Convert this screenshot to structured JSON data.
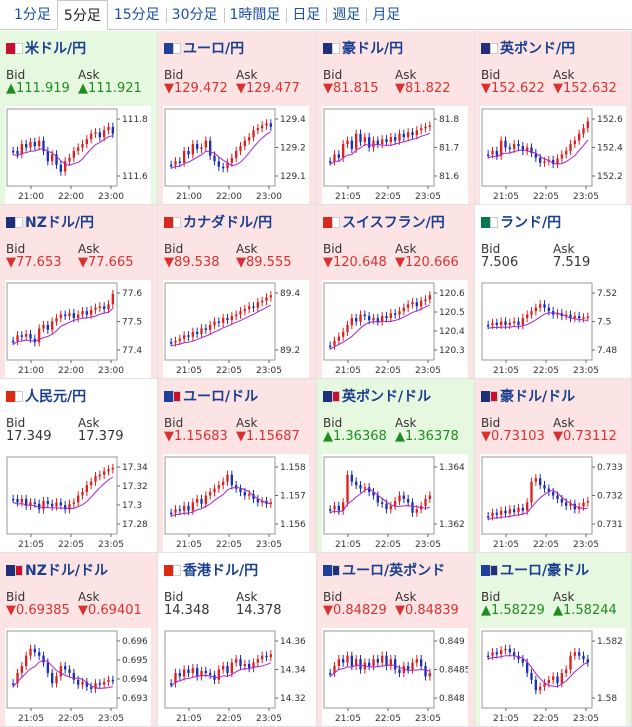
{
  "tabs": [
    {
      "label": "1分足",
      "active": false
    },
    {
      "label": "5分足",
      "active": true
    },
    {
      "label": "15分足",
      "active": false
    },
    {
      "label": "30分足",
      "active": false
    },
    {
      "label": "1時間足",
      "active": false
    },
    {
      "label": "日足",
      "active": false
    },
    {
      "label": "週足",
      "active": false
    },
    {
      "label": "月足",
      "active": false
    }
  ],
  "bid_label": "Bid",
  "ask_label": "Ask",
  "colors": {
    "up_bg": "#e6f8e0",
    "down_bg": "#fde4e4",
    "up_text": "#1e8c1e",
    "down_text": "#d93030",
    "candle_up": "#e02020",
    "candle_down": "#1a2fb8",
    "ma_line": "#aa22cc"
  },
  "cards": [
    {
      "name": "米ドル/円",
      "trend": "up",
      "flag": [
        "#c8102e",
        "#ffffff"
      ],
      "bid": "111.919",
      "ask": "111.921",
      "x_ticks": [
        "21:00",
        "22:00",
        "23:00"
      ],
      "y_ticks": [
        "111.8",
        "111.6"
      ]
    },
    {
      "name": "ユーロ/円",
      "trend": "down",
      "flag": [
        "#1f3f9a",
        "#ffffff"
      ],
      "bid": "129.472",
      "ask": "129.477",
      "x_ticks": [
        "21:00",
        "22:00",
        "23:00"
      ],
      "y_ticks": [
        "129.4",
        "129.2",
        "129.1"
      ]
    },
    {
      "name": "豪ドル/円",
      "trend": "down",
      "flag": [
        "#1f2f7a",
        "#ffffff"
      ],
      "bid": "81.815",
      "ask": "81.822",
      "x_ticks": [
        "21:05",
        "22:05",
        "23:05"
      ],
      "y_ticks": [
        "81.8",
        "81.7",
        "81.6"
      ]
    },
    {
      "name": "英ポンド/円",
      "trend": "down",
      "flag": [
        "#1f2f7a",
        "#ffffff"
      ],
      "bid": "152.622",
      "ask": "152.632",
      "x_ticks": [
        "21:05",
        "22:05",
        "23:05"
      ],
      "y_ticks": [
        "152.6",
        "152.4",
        "152.2"
      ]
    },
    {
      "name": "NZドル/円",
      "trend": "down",
      "flag": [
        "#1f2f7a",
        "#ffffff"
      ],
      "bid": "77.653",
      "ask": "77.665",
      "x_ticks": [
        "21:00",
        "22:00",
        "23:00"
      ],
      "y_ticks": [
        "77.6",
        "77.5",
        "77.4"
      ]
    },
    {
      "name": "カナダドル/円",
      "trend": "down",
      "flag": [
        "#d52b1e",
        "#ffffff"
      ],
      "bid": "89.538",
      "ask": "89.555",
      "x_ticks": [
        "21:05",
        "22:05",
        "23:05"
      ],
      "y_ticks": [
        "89.4",
        "89.2"
      ]
    },
    {
      "name": "スイスフラン/円",
      "trend": "down",
      "flag": [
        "#d52b1e",
        "#ffffff"
      ],
      "bid": "120.648",
      "ask": "120.666",
      "x_ticks": [
        "21:05",
        "22:05",
        "23:05"
      ],
      "y_ticks": [
        "120.6",
        "120.5",
        "120.4",
        "120.3"
      ]
    },
    {
      "name": "ランド/円",
      "trend": "flat",
      "flag": [
        "#007a4d",
        "#ffffff"
      ],
      "bid": "7.506",
      "ask": "7.519",
      "x_ticks": [
        "21:05",
        "22:05",
        "23:05"
      ],
      "y_ticks": [
        "7.52",
        "7.5",
        "7.48"
      ]
    },
    {
      "name": "人民元/円",
      "trend": "flat",
      "flag": [
        "#de2910",
        "#ffffff"
      ],
      "bid": "17.349",
      "ask": "17.379",
      "x_ticks": [
        "21:05",
        "22:05",
        "23:05"
      ],
      "y_ticks": [
        "17.34",
        "17.32",
        "17.3",
        "17.28"
      ]
    },
    {
      "name": "ユーロ/ドル",
      "trend": "down",
      "flag": [
        "#1f3f9a",
        "#c8102e"
      ],
      "bid": "1.15683",
      "ask": "1.15687",
      "x_ticks": [
        "21:05",
        "22:05",
        "23:05"
      ],
      "y_ticks": [
        "1.158",
        "1.157",
        "1.156"
      ]
    },
    {
      "name": "英ポンド/ドル",
      "trend": "up",
      "flag": [
        "#1f2f7a",
        "#c8102e"
      ],
      "bid": "1.36368",
      "ask": "1.36378",
      "x_ticks": [
        "21:05",
        "22:05",
        "23:05"
      ],
      "y_ticks": [
        "1.364",
        "1.362"
      ]
    },
    {
      "name": "豪ドル/ドル",
      "trend": "down",
      "flag": [
        "#1f2f7a",
        "#c8102e"
      ],
      "bid": "0.73103",
      "ask": "0.73112",
      "x_ticks": [
        "21:05",
        "22:05",
        "23:05"
      ],
      "y_ticks": [
        "0.733",
        "0.732",
        "0.731"
      ]
    },
    {
      "name": "NZドル/ドル",
      "trend": "down",
      "flag": [
        "#1f2f7a",
        "#c8102e"
      ],
      "bid": "0.69385",
      "ask": "0.69401",
      "x_ticks": [
        "21:05",
        "22:05",
        "23:05"
      ],
      "y_ticks": [
        "0.696",
        "0.695",
        "0.694",
        "0.693"
      ]
    },
    {
      "name": "香港ドル/円",
      "trend": "flat",
      "flag": [
        "#de2910",
        "#ffffff"
      ],
      "bid": "14.348",
      "ask": "14.378",
      "x_ticks": [
        "21:05",
        "22:05",
        "23:05"
      ],
      "y_ticks": [
        "14.36",
        "14.34",
        "14.32"
      ]
    },
    {
      "name": "ユーロ/英ポンド",
      "trend": "down",
      "flag": [
        "#1f3f9a",
        "#1f2f7a"
      ],
      "bid": "0.84829",
      "ask": "0.84839",
      "x_ticks": [
        "21:05",
        "22:05",
        "23:05"
      ],
      "y_ticks": [
        "0.849",
        "0.8485",
        "0.848"
      ]
    },
    {
      "name": "ユーロ/豪ドル",
      "trend": "up",
      "flag": [
        "#1f3f9a",
        "#1f2f7a"
      ],
      "bid": "1.58229",
      "ask": "1.58244",
      "x_ticks": [
        "21:05",
        "22:05",
        "23:05"
      ],
      "y_ticks": [
        "1.582",
        "1.58"
      ]
    }
  ]
}
